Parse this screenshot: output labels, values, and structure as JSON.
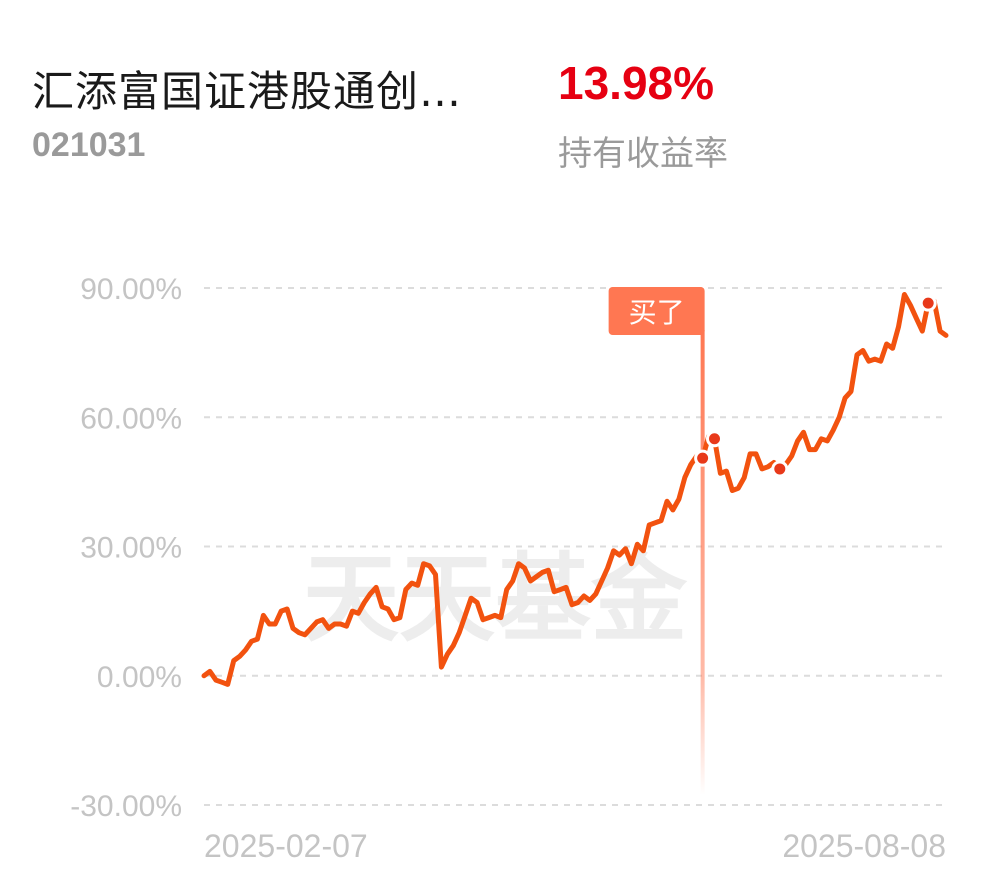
{
  "fund": {
    "name": "汇添富国证港股通创…",
    "code": "021031",
    "return_value": "13.98%",
    "return_label": "持有收益率"
  },
  "chart_data": {
    "type": "line",
    "title": "",
    "xlabel": "",
    "ylabel": "",
    "ylim": [
      -30,
      90
    ],
    "yticks": [
      90,
      60,
      30,
      0,
      -30
    ],
    "ytick_labels": [
      "90.00%",
      "60.00%",
      "30.00%",
      "0.00%",
      "-30.00%"
    ],
    "x_start_label": "2025-02-07",
    "x_end_label": "2025-08-08",
    "grid": true,
    "line_color": "#f2520f",
    "marker_color": "#e8391a",
    "buy_label": "买了",
    "buy_label_color": "#ff7752",
    "watermark": "天天基金",
    "series": [
      {
        "values": [
          0,
          1,
          -1,
          -1.5,
          -2,
          3.5,
          4.5,
          6,
          8,
          8.5,
          14,
          12,
          12,
          15,
          15.5,
          11,
          10,
          9.5,
          11,
          12.5,
          13,
          11,
          12,
          12,
          11.5,
          15,
          14.5,
          17,
          19,
          20.5,
          16,
          15.5,
          13,
          13.5,
          20,
          21.5,
          21,
          26,
          25.5,
          23.5,
          2,
          5,
          7,
          10,
          14,
          18,
          17,
          13,
          13.5,
          14,
          13.5,
          20,
          22,
          26,
          25,
          22,
          23,
          24,
          24.5,
          19.5,
          20,
          20.5,
          16.5,
          17,
          18.5,
          17.5,
          19,
          22,
          25,
          29,
          28,
          29.5,
          26,
          30.5,
          29,
          35,
          35.5,
          36,
          40.5,
          38.5,
          41,
          46,
          49,
          51,
          50.5,
          55.5,
          55,
          47,
          47.5,
          43,
          43.5,
          46,
          51.5,
          51.5,
          48,
          48.5,
          49.5,
          48,
          49,
          51,
          54.5,
          56.5,
          52.5,
          52.5,
          55,
          54.5,
          57,
          60,
          64.5,
          66,
          74.5,
          75.5,
          73,
          73.5,
          73,
          77,
          76,
          81,
          88.5,
          86,
          83,
          80,
          86.5,
          87,
          80,
          79
        ]
      }
    ],
    "buy_index": 84,
    "markers": [
      84,
      86,
      97,
      122
    ]
  }
}
